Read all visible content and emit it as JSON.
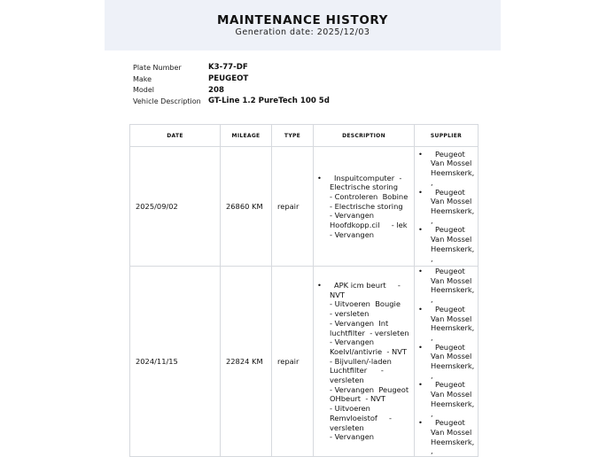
{
  "header": {
    "title": "MAINTENANCE HISTORY",
    "generation_date": "Generation date: 2025/12/03"
  },
  "vehicle": [
    {
      "label": "Plate Number",
      "value": "K3-77-DF"
    },
    {
      "label": "Make",
      "value": "PEUGEOT"
    },
    {
      "label": "Model",
      "value": "208"
    },
    {
      "label": "Vehicle Description",
      "value": "GT-Line 1.2 PureTech 100 5d"
    }
  ],
  "table": {
    "columns": [
      "DATE",
      "MILEAGE",
      "TYPE",
      "DESCRIPTION",
      "SUPPLIER"
    ],
    "rows": [
      {
        "date": "2025/09/02",
        "mileage": "26860 KM",
        "type": "repair",
        "description": [
          "Inspuitcomputer  -",
          "Electrische storing",
          "- Controleren  Bobine",
          "- Electrische storing",
          "- Vervangen",
          "Hoofdkopp.cil     - lek",
          "- Vervangen"
        ],
        "suppliers": [
          [
            "Peugeot",
            "Van Mossel",
            "Heemskerk,",
            ","
          ],
          [
            "Peugeot",
            "Van Mossel",
            "Heemskerk,",
            ","
          ],
          [
            "Peugeot",
            "Van Mossel",
            "Heemskerk,",
            ","
          ]
        ]
      },
      {
        "date": "2024/11/15",
        "mileage": "22824 KM",
        "type": "repair",
        "description": [
          "APK icm beurt     -",
          "NVT",
          "- Uitvoeren  Bougie",
          "- versleten",
          "- Vervangen  Int",
          "luchtfilter  - versleten",
          "- Vervangen",
          "Koelvl/antivrie  - NVT",
          "- Bijvullen/-laden",
          "Luchtfilter      -",
          "versleten",
          "- Vervangen  Peugeot",
          "OHbeurt  - NVT",
          "- Uitvoeren",
          "Remvloeistof     -",
          "versleten",
          "- Vervangen"
        ],
        "suppliers": [
          [
            "Peugeot",
            "Van Mossel",
            "Heemskerk,",
            ","
          ],
          [
            "Peugeot",
            "Van Mossel",
            "Heemskerk,",
            ","
          ],
          [
            "Peugeot",
            "Van Mossel",
            "Heemskerk,",
            ","
          ],
          [
            "Peugeot",
            "Van Mossel",
            "Heemskerk,",
            ","
          ],
          [
            "Peugeot",
            "Van Mossel",
            "Heemskerk,",
            ","
          ]
        ]
      }
    ]
  }
}
